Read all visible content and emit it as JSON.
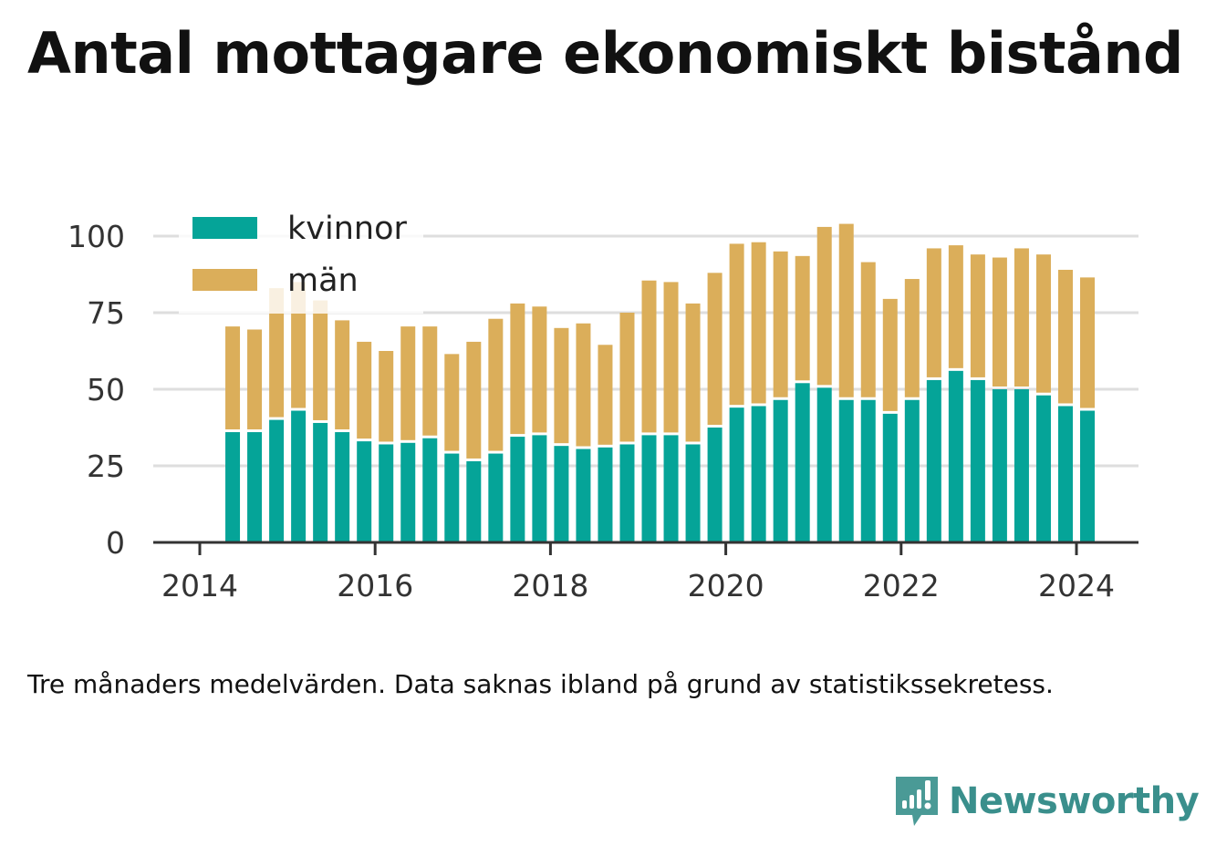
{
  "title": "Antal mottagare ekonomiskt bistånd",
  "note": "Tre månaders medelvärden. Data saknas ibland på grund av statistikssekretess.",
  "brand": {
    "name": "Newsworthy",
    "icon": "newsworthy-logo-icon",
    "color": "#3a8f8c"
  },
  "chart_data": {
    "type": "bar",
    "stacked": true,
    "x_unit": "year (quarterly bars)",
    "x": [
      2014.375,
      2014.625,
      2014.875,
      2015.125,
      2015.375,
      2015.625,
      2015.875,
      2016.125,
      2016.375,
      2016.625,
      2016.875,
      2017.125,
      2017.375,
      2017.625,
      2017.875,
      2018.125,
      2018.375,
      2018.625,
      2018.875,
      2019.125,
      2019.375,
      2019.625,
      2019.875,
      2020.125,
      2020.375,
      2020.625,
      2020.875,
      2021.125,
      2021.375,
      2021.625,
      2021.875,
      2022.125,
      2022.375,
      2022.625,
      2022.875,
      2023.125,
      2023.375,
      2023.625,
      2023.875,
      2024.125
    ],
    "series": [
      {
        "name": "kvinnor",
        "color": "#05a498",
        "values": [
          36,
          36,
          40,
          43,
          39,
          36,
          33,
          32,
          32.5,
          34,
          29,
          26.5,
          29,
          34.5,
          35,
          31.5,
          30.5,
          31,
          32,
          35,
          35,
          32,
          37.5,
          44,
          44.5,
          46.5,
          52,
          50.5,
          46.5,
          46.5,
          42,
          46.5,
          53,
          56,
          53,
          50,
          50,
          48,
          44.5,
          43
        ]
      },
      {
        "name": "män",
        "color": "#dbae5a",
        "values": [
          34.5,
          33.5,
          43,
          42,
          40,
          36.5,
          32.5,
          30.5,
          38,
          36.5,
          32.5,
          39,
          44,
          43.5,
          42,
          38.5,
          41,
          33.5,
          43,
          50.5,
          50,
          46,
          50.5,
          53.5,
          53.5,
          48.5,
          41.5,
          52.5,
          57.5,
          45,
          37.5,
          39.5,
          43,
          41,
          41,
          43,
          46,
          46,
          44.5,
          43.5
        ]
      }
    ],
    "xticks": [
      "2014",
      "2016",
      "2018",
      "2020",
      "2022",
      "2024"
    ],
    "xtick_values": [
      2014,
      2016,
      2018,
      2020,
      2022,
      2024
    ],
    "yticks": [
      "0",
      "25",
      "50",
      "75",
      "100"
    ],
    "ytick_values": [
      0,
      25,
      50,
      75,
      100
    ],
    "xlim": [
      2013.5,
      2024.7
    ],
    "ylim": [
      0,
      110
    ],
    "grid": "horizontal",
    "legend_position": "top-left",
    "title": "Antal mottagare ekonomiskt bistånd",
    "xlabel": "",
    "ylabel": ""
  }
}
